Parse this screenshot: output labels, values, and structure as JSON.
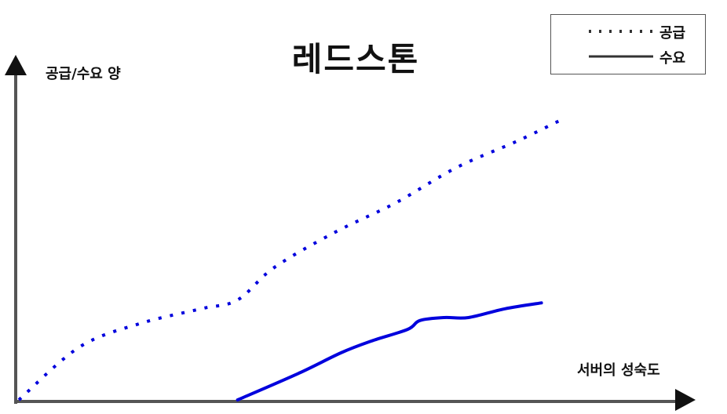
{
  "chart_data": {
    "type": "line",
    "title": "레드스톤",
    "xlabel": "서버의 성숙도",
    "ylabel": "공급/수요 양",
    "xlim": [
      0,
      100
    ],
    "ylim": [
      0,
      100
    ],
    "grid": false,
    "legend_position": "top-right",
    "series": [
      {
        "name": "공급",
        "style": "dotted",
        "color": "#0000dd",
        "x": [
          0,
          10,
          20,
          30,
          36,
          42,
          52,
          62,
          72,
          82,
          90
        ],
        "y": [
          0,
          18,
          26,
          31,
          34,
          45,
          57,
          67,
          79,
          88,
          96
        ]
      },
      {
        "name": "수요",
        "style": "solid",
        "color": "#0000dd",
        "x": [
          36,
          46,
          53,
          58,
          64,
          66,
          70,
          74,
          80,
          86
        ],
        "y": [
          0,
          9,
          16,
          20,
          24,
          27,
          28,
          28,
          31,
          33
        ]
      }
    ],
    "axis_color": "#555555"
  }
}
